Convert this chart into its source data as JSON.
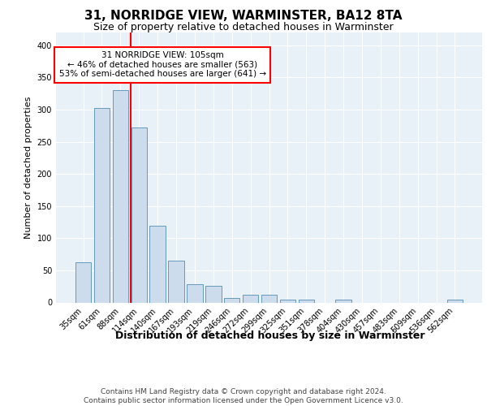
{
  "title": "31, NORRIDGE VIEW, WARMINSTER, BA12 8TA",
  "subtitle": "Size of property relative to detached houses in Warminster",
  "xlabel": "Distribution of detached houses by size in Warminster",
  "ylabel": "Number of detached properties",
  "categories": [
    "35sqm",
    "61sqm",
    "88sqm",
    "114sqm",
    "140sqm",
    "167sqm",
    "193sqm",
    "219sqm",
    "246sqm",
    "272sqm",
    "299sqm",
    "325sqm",
    "351sqm",
    "378sqm",
    "404sqm",
    "430sqm",
    "457sqm",
    "483sqm",
    "509sqm",
    "536sqm",
    "562sqm"
  ],
  "values": [
    62,
    302,
    330,
    272,
    120,
    65,
    28,
    26,
    7,
    12,
    12,
    5,
    4,
    0,
    4,
    0,
    0,
    0,
    0,
    0,
    4
  ],
  "bar_color": "#ccdcec",
  "bar_edge_color": "#6699bb",
  "red_line_x": 2.57,
  "annotation_text": "31 NORRIDGE VIEW: 105sqm\n← 46% of detached houses are smaller (563)\n53% of semi-detached houses are larger (641) →",
  "annotation_box_color": "white",
  "annotation_box_edge_color": "red",
  "ylim": [
    0,
    420
  ],
  "yticks": [
    0,
    50,
    100,
    150,
    200,
    250,
    300,
    350,
    400
  ],
  "footer_line1": "Contains HM Land Registry data © Crown copyright and database right 2024.",
  "footer_line2": "Contains public sector information licensed under the Open Government Licence v3.0.",
  "background_color": "#e8f0f8",
  "grid_color": "white",
  "title_fontsize": 11,
  "subtitle_fontsize": 9,
  "xlabel_fontsize": 9,
  "ylabel_fontsize": 8,
  "tick_fontsize": 7,
  "annotation_fontsize": 7.5,
  "footer_fontsize": 6.5
}
